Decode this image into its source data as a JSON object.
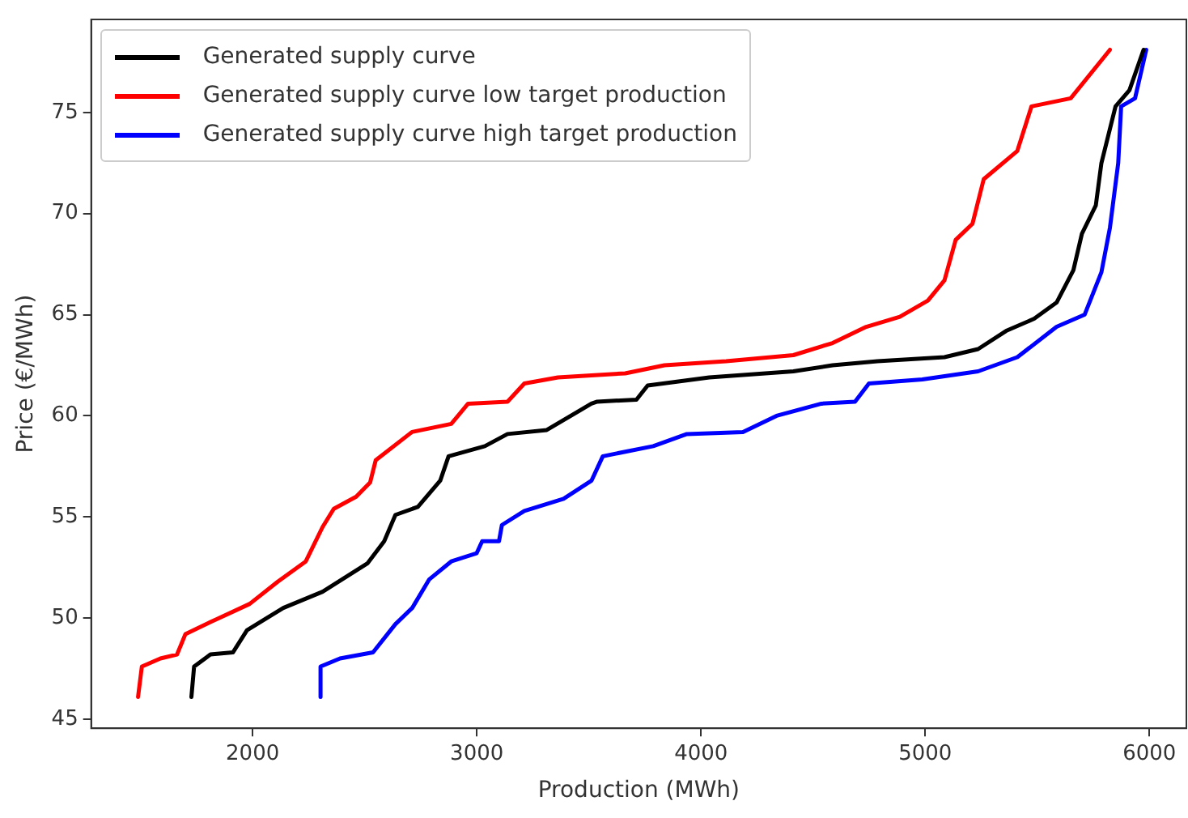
{
  "chart_data": {
    "type": "line",
    "xlabel": "Production (MWh)",
    "ylabel": "Price (€/MWh)",
    "xlim": [
      1280,
      6165
    ],
    "ylim": [
      44.55,
      79.6
    ],
    "xticks": [
      2000,
      3000,
      4000,
      5000,
      6000
    ],
    "yticks": [
      45,
      50,
      55,
      60,
      65,
      70,
      75
    ],
    "grid": false,
    "legend": "top left",
    "marker": "none",
    "line_style": "solid",
    "series": [
      {
        "name": "Generated supply curve",
        "color": "#000000",
        "x": [
          1727,
          1739,
          1812,
          1912,
          1975,
          2137,
          2312,
          2512,
          2587,
          2637,
          2737,
          2837,
          2874,
          3036,
          3137,
          3312,
          3511,
          3537,
          3712,
          3762,
          4037,
          4412,
          4587,
          4787,
          5086,
          5236,
          5361,
          5486,
          5586,
          5661,
          5699,
          5761,
          5786,
          5849,
          5911,
          5974
        ],
        "values": [
          46.1,
          47.6,
          48.2,
          48.3,
          49.4,
          50.5,
          51.3,
          52.7,
          53.8,
          55.1,
          55.5,
          56.8,
          58.0,
          58.5,
          59.1,
          59.3,
          60.6,
          60.7,
          60.8,
          61.5,
          61.9,
          62.2,
          62.5,
          62.7,
          62.9,
          63.3,
          64.2,
          64.8,
          65.6,
          67.2,
          69.0,
          70.4,
          72.5,
          75.3,
          76.1,
          78.1
        ]
      },
      {
        "name": "Generated supply curve low target production",
        "color": "#ff0000",
        "x": [
          1489,
          1506,
          1589,
          1663,
          1700,
          1812,
          1987,
          2112,
          2237,
          2312,
          2362,
          2462,
          2524,
          2549,
          2711,
          2886,
          2961,
          3137,
          3212,
          3362,
          3511,
          3662,
          3837,
          4112,
          4412,
          4587,
          4737,
          4887,
          5012,
          5086,
          5136,
          5211,
          5261,
          5411,
          5474,
          5649,
          5824
        ],
        "values": [
          46.1,
          47.6,
          48.0,
          48.2,
          49.2,
          49.8,
          50.7,
          51.8,
          52.8,
          54.5,
          55.4,
          56.0,
          56.7,
          57.8,
          59.2,
          59.6,
          60.6,
          60.7,
          61.6,
          61.9,
          62.0,
          62.1,
          62.5,
          62.7,
          63.0,
          63.6,
          64.4,
          64.9,
          65.7,
          66.7,
          68.7,
          69.5,
          71.7,
          73.1,
          75.3,
          75.7,
          78.1
        ]
      },
      {
        "name": "Generated supply curve high target production",
        "color": "#0000ff",
        "x": [
          2303,
          2303,
          2390,
          2537,
          2637,
          2712,
          2787,
          2886,
          2999,
          3024,
          3099,
          3112,
          3212,
          3387,
          3512,
          3562,
          3787,
          3937,
          4187,
          4337,
          4537,
          4687,
          4749,
          4987,
          5236,
          5411,
          5586,
          5711,
          5786,
          5824,
          5861,
          5874,
          5936,
          5986
        ],
        "values": [
          46.1,
          47.6,
          48.0,
          48.3,
          49.7,
          50.5,
          51.9,
          52.8,
          53.2,
          53.8,
          53.8,
          54.6,
          55.3,
          55.9,
          56.8,
          58.0,
          58.5,
          59.1,
          59.2,
          60.0,
          60.6,
          60.7,
          61.6,
          61.8,
          62.2,
          62.9,
          64.4,
          65.0,
          67.1,
          69.3,
          72.5,
          75.3,
          75.7,
          78.1
        ]
      }
    ]
  }
}
